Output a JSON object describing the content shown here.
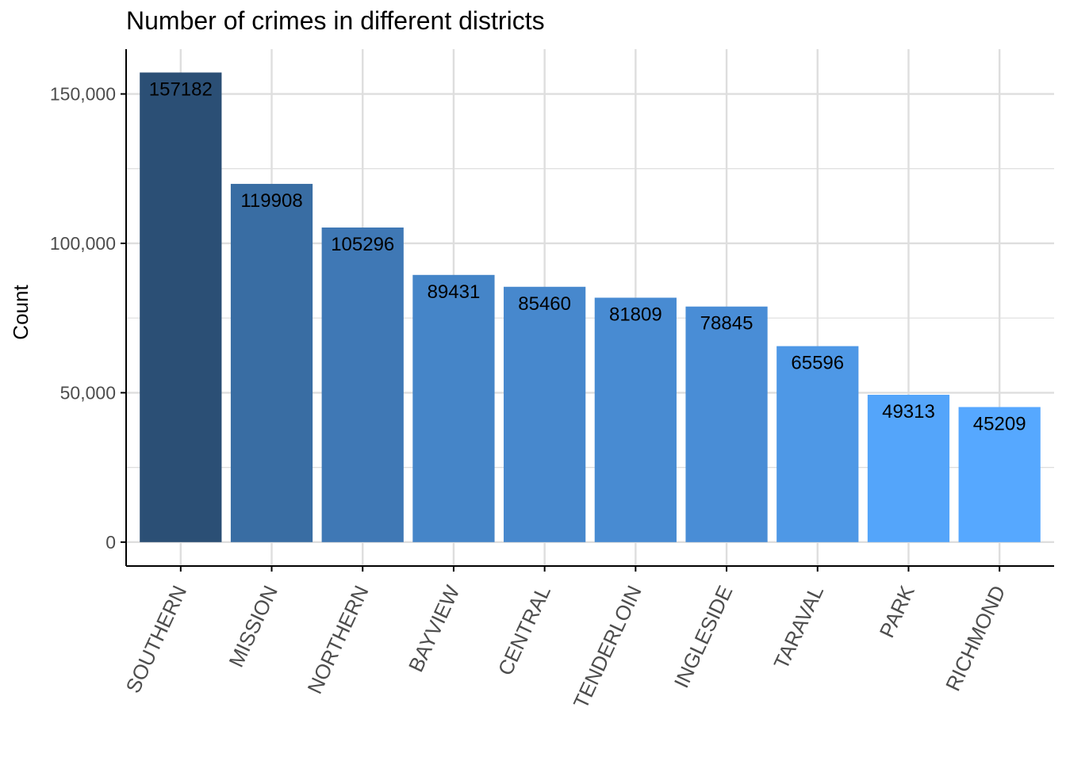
{
  "chart_data": {
    "type": "bar",
    "title": "Number of crimes in different districts",
    "xlabel": "",
    "ylabel": "Count",
    "categories": [
      "SOUTHERN",
      "MISSION",
      "NORTHERN",
      "BAYVIEW",
      "CENTRAL",
      "TENDERLOIN",
      "INGLESIDE",
      "TARAVAL",
      "PARK",
      "RICHMOND"
    ],
    "values": [
      157182,
      119908,
      105296,
      89431,
      85460,
      81809,
      78845,
      65596,
      49313,
      45209
    ],
    "data_labels": [
      "157182",
      "119908",
      "105296",
      "89431",
      "85460",
      "81809",
      "78845",
      "65596",
      "49313",
      "45209"
    ],
    "yticks": [
      0,
      50000,
      100000,
      150000
    ],
    "ytick_labels": [
      "0",
      "50,000",
      "100,000",
      "150,000"
    ],
    "ylim": [
      -8000,
      165000
    ],
    "grid": true,
    "legend": "none",
    "colors": {
      "bar_low": "#56a8ff",
      "bar_high": "#2b4f75",
      "grid": "#dedede",
      "axis": "#000000",
      "tick_text": "#4d4d4d",
      "label_text": "#000000"
    }
  }
}
